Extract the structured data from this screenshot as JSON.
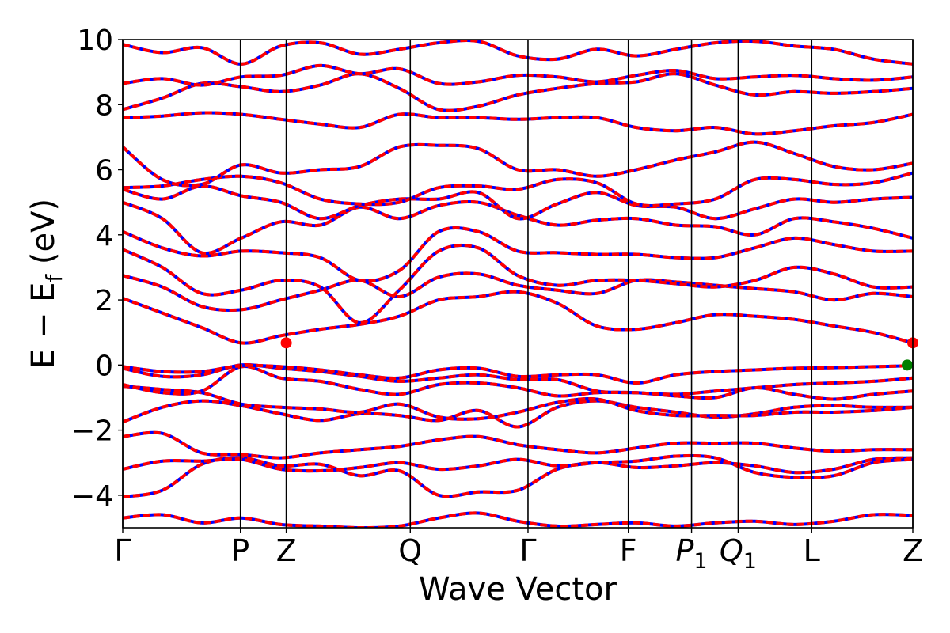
{
  "chart_data": {
    "type": "line",
    "title": "",
    "xlabel": "Wave Vector",
    "ylabel_parts": {
      "main": "E − E",
      "sub": "f",
      "suffix": " (eV)"
    },
    "ylim": [
      -5,
      10
    ],
    "yticks": [
      {
        "value": 10,
        "label": "10"
      },
      {
        "value": 8,
        "label": "8"
      },
      {
        "value": 6,
        "label": "6"
      },
      {
        "value": 4,
        "label": "4"
      },
      {
        "value": 2,
        "label": "2"
      },
      {
        "value": 0,
        "label": "0"
      },
      {
        "value": -2,
        "label": "−2"
      },
      {
        "value": -4,
        "label": "−4"
      }
    ],
    "kpoints": [
      {
        "pos": 0.0,
        "label": "Γ",
        "sub": ""
      },
      {
        "pos": 0.149,
        "label": "P",
        "sub": ""
      },
      {
        "pos": 0.207,
        "label": "Z",
        "sub": ""
      },
      {
        "pos": 0.364,
        "label": "Q",
        "sub": ""
      },
      {
        "pos": 0.513,
        "label": "Γ",
        "sub": ""
      },
      {
        "pos": 0.64,
        "label": "F",
        "sub": ""
      },
      {
        "pos": 0.72,
        "label": "P",
        "sub": "1",
        "italic": true
      },
      {
        "pos": 0.779,
        "label": "Q",
        "sub": "1",
        "italic": true
      },
      {
        "pos": 0.872,
        "label": "L",
        "sub": ""
      },
      {
        "pos": 1.0,
        "label": "Z",
        "sub": ""
      }
    ],
    "grid": false,
    "legend": "none",
    "series_colors": {
      "spin_up": "#ff0000",
      "spin_down": "#0000ff"
    },
    "markers": [
      {
        "name": "cbm",
        "x": 0.207,
        "y": 0.68,
        "color": "#ff0000"
      },
      {
        "name": "cbm",
        "x": 1.0,
        "y": 0.68,
        "color": "#ff0000"
      },
      {
        "name": "vbm",
        "x": 0.993,
        "y": 0.0,
        "color": "#008000"
      }
    ],
    "bands": [
      [
        -4.7,
        -4.6,
        -4.85,
        -4.7,
        -4.9,
        -4.95,
        -5.0,
        -4.95,
        -4.7,
        -4.55,
        -4.8,
        -4.95,
        -4.9,
        -4.85,
        -4.95,
        -4.85,
        -4.8,
        -4.9,
        -4.8,
        -4.6,
        -4.62
      ],
      [
        -4.05,
        -3.85,
        -3.05,
        -2.85,
        -3.1,
        -3.05,
        -3.4,
        -3.25,
        -4.0,
        -3.9,
        -3.85,
        -3.2,
        -3.0,
        -3.15,
        -3.1,
        -3.0,
        -3.1,
        -3.3,
        -3.2,
        -2.9,
        -2.85
      ],
      [
        -3.2,
        -2.95,
        -2.95,
        -2.9,
        -3.2,
        -3.25,
        -3.15,
        -3.0,
        -3.2,
        -3.1,
        -2.9,
        -3.1,
        -3.0,
        -2.95,
        -2.8,
        -2.85,
        -3.3,
        -3.45,
        -3.4,
        -3.0,
        -2.9
      ],
      [
        -2.2,
        -2.1,
        -2.7,
        -2.75,
        -2.85,
        -2.7,
        -2.6,
        -2.5,
        -2.3,
        -2.2,
        -2.45,
        -2.6,
        -2.7,
        -2.55,
        -2.4,
        -2.4,
        -2.4,
        -2.55,
        -2.65,
        -2.6,
        -2.6
      ],
      [
        -1.75,
        -1.3,
        -1.1,
        -1.25,
        -1.5,
        -1.7,
        -1.5,
        -1.55,
        -1.7,
        -1.4,
        -1.9,
        -1.3,
        -1.1,
        -1.3,
        -1.45,
        -1.6,
        -1.5,
        -1.3,
        -1.25,
        -1.3,
        -1.3
      ],
      [
        -0.65,
        -0.75,
        -0.85,
        -1.2,
        -1.3,
        -1.35,
        -1.45,
        -1.2,
        -1.6,
        -1.65,
        -1.45,
        -1.15,
        -1.05,
        -1.4,
        -1.55,
        -1.55,
        -1.55,
        -1.45,
        -1.45,
        -1.4,
        -1.3
      ],
      [
        -0.6,
        -0.85,
        -0.8,
        -0.05,
        -0.4,
        -0.5,
        -0.75,
        -0.9,
        -0.6,
        -0.55,
        -0.7,
        -0.95,
        -0.85,
        -0.85,
        -0.95,
        -1.0,
        -0.7,
        -0.9,
        -1.05,
        -0.9,
        -0.8
      ],
      [
        -0.1,
        -0.35,
        -0.3,
        -0.0,
        -0.1,
        -0.2,
        -0.35,
        -0.5,
        -0.4,
        -0.3,
        -0.45,
        -0.45,
        -0.8,
        -0.85,
        -0.9,
        -0.8,
        -0.7,
        -0.6,
        -0.55,
        -0.5,
        -0.4
      ],
      [
        -0.05,
        -0.2,
        -0.2,
        -0.02,
        -0.05,
        -0.15,
        -0.3,
        -0.4,
        -0.15,
        -0.1,
        -0.35,
        -0.3,
        -0.3,
        -0.55,
        -0.3,
        -0.2,
        -0.15,
        -0.1,
        -0.08,
        -0.05,
        -0.02
      ],
      [
        2.05,
        1.6,
        1.15,
        0.68,
        0.9,
        1.1,
        1.25,
        1.5,
        2.0,
        2.1,
        2.25,
        1.9,
        1.2,
        1.1,
        1.3,
        1.55,
        1.5,
        1.4,
        1.2,
        1.0,
        0.68
      ],
      [
        2.75,
        2.4,
        1.8,
        1.7,
        2.0,
        2.3,
        2.6,
        2.1,
        2.7,
        2.8,
        2.45,
        2.3,
        2.2,
        2.6,
        2.55,
        2.45,
        2.35,
        2.25,
        2.0,
        2.2,
        2.1
      ],
      [
        3.55,
        3.0,
        2.2,
        2.3,
        2.6,
        2.4,
        1.3,
        2.3,
        3.5,
        3.6,
        2.75,
        2.45,
        2.6,
        2.6,
        2.5,
        2.4,
        2.6,
        3.0,
        2.8,
        2.4,
        2.4
      ],
      [
        4.1,
        3.6,
        3.35,
        3.5,
        3.45,
        3.3,
        2.6,
        2.9,
        4.1,
        4.1,
        3.5,
        3.45,
        3.4,
        3.4,
        3.3,
        3.3,
        3.6,
        3.9,
        3.7,
        3.5,
        3.5
      ],
      [
        5.0,
        4.5,
        3.45,
        3.9,
        4.4,
        4.3,
        4.85,
        4.5,
        4.9,
        5.0,
        4.6,
        4.3,
        4.45,
        4.5,
        4.3,
        4.25,
        4.0,
        4.5,
        4.4,
        4.2,
        3.9
      ],
      [
        5.4,
        5.1,
        5.5,
        5.2,
        5.0,
        4.5,
        4.9,
        5.1,
        5.1,
        5.3,
        4.5,
        4.95,
        5.3,
        4.9,
        4.85,
        4.5,
        4.8,
        5.1,
        5.0,
        5.1,
        5.15
      ],
      [
        5.45,
        5.5,
        5.7,
        5.8,
        5.6,
        5.1,
        4.95,
        5.0,
        5.45,
        5.5,
        5.4,
        5.7,
        5.6,
        4.95,
        4.95,
        5.1,
        5.7,
        5.7,
        5.55,
        5.6,
        5.9
      ],
      [
        6.7,
        5.7,
        5.55,
        6.15,
        5.9,
        6.0,
        6.1,
        6.7,
        6.75,
        6.65,
        6.0,
        6.0,
        5.8,
        6.0,
        6.3,
        6.55,
        6.85,
        6.5,
        6.1,
        6.0,
        6.2
      ],
      [
        7.6,
        7.65,
        7.75,
        7.7,
        7.55,
        7.4,
        7.3,
        7.7,
        7.6,
        7.6,
        7.55,
        7.6,
        7.6,
        7.3,
        7.2,
        7.3,
        7.1,
        7.2,
        7.35,
        7.45,
        7.7
      ],
      [
        7.85,
        8.2,
        8.65,
        8.55,
        8.4,
        8.6,
        8.95,
        8.5,
        7.85,
        7.95,
        8.3,
        8.5,
        8.65,
        8.7,
        8.95,
        8.6,
        8.3,
        8.4,
        8.35,
        8.4,
        8.5
      ],
      [
        8.65,
        8.8,
        8.6,
        8.85,
        8.9,
        9.2,
        8.95,
        9.1,
        8.65,
        8.7,
        8.9,
        8.85,
        8.7,
        8.9,
        9.05,
        8.8,
        8.85,
        8.9,
        8.8,
        8.75,
        8.85
      ],
      [
        9.85,
        9.6,
        9.75,
        9.25,
        9.8,
        9.9,
        9.55,
        9.7,
        9.9,
        9.95,
        9.5,
        9.4,
        9.7,
        9.5,
        9.7,
        9.9,
        9.95,
        9.8,
        9.7,
        9.4,
        9.25
      ]
    ]
  }
}
